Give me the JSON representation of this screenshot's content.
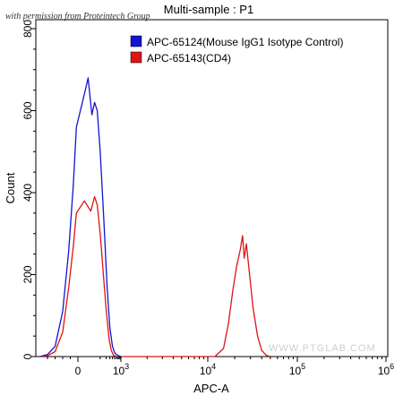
{
  "permission_note": "with permission from Proteintech Group",
  "watermark": "WWW.PTGLAB.COM",
  "chart_data": {
    "type": "line",
    "title": "Multi-sample : P1",
    "xlabel": "APC-A",
    "ylabel": "Count",
    "x_scale": "logicle",
    "ylim": [
      0,
      800
    ],
    "y_ticks": [
      0,
      200,
      400,
      600,
      800
    ],
    "y_tick_labels": [
      "0",
      "200",
      "400",
      "600",
      "800"
    ],
    "x_ticks": [
      0,
      1000,
      10000,
      100000,
      1000000
    ],
    "x_tick_labels": [
      {
        "base": "0",
        "exp": ""
      },
      {
        "base": "10",
        "exp": "3"
      },
      {
        "base": "10",
        "exp": "4"
      },
      {
        "base": "10",
        "exp": "5"
      },
      {
        "base": "10",
        "exp": "6"
      }
    ],
    "legend_position": "top-right",
    "series": [
      {
        "name": "APC-65124(Mouse IgG1 Isotype Control)",
        "color": "#1414d2",
        "points": [
          [
            -500,
            0
          ],
          [
            -400,
            5
          ],
          [
            -300,
            25
          ],
          [
            -200,
            110
          ],
          [
            -120,
            260
          ],
          [
            -60,
            420
          ],
          [
            -20,
            560
          ],
          [
            10,
            640
          ],
          [
            20,
            680
          ],
          [
            35,
            590
          ],
          [
            50,
            620
          ],
          [
            70,
            600
          ],
          [
            100,
            500
          ],
          [
            150,
            340
          ],
          [
            220,
            170
          ],
          [
            300,
            70
          ],
          [
            400,
            25
          ],
          [
            500,
            10
          ],
          [
            600,
            5
          ],
          [
            800,
            2
          ],
          [
            1000,
            0
          ]
        ]
      },
      {
        "name": "APC-65143(CD4)",
        "color": "#dc1414",
        "points": [
          [
            -500,
            0
          ],
          [
            -400,
            2
          ],
          [
            -300,
            12
          ],
          [
            -200,
            60
          ],
          [
            -120,
            170
          ],
          [
            -60,
            270
          ],
          [
            -20,
            350
          ],
          [
            10,
            380
          ],
          [
            30,
            355
          ],
          [
            50,
            390
          ],
          [
            70,
            370
          ],
          [
            100,
            300
          ],
          [
            150,
            190
          ],
          [
            200,
            110
          ],
          [
            280,
            40
          ],
          [
            350,
            15
          ],
          [
            450,
            3
          ],
          [
            600,
            0
          ],
          [
            12000,
            0
          ],
          [
            15000,
            20
          ],
          [
            17000,
            80
          ],
          [
            19000,
            160
          ],
          [
            21000,
            220
          ],
          [
            23000,
            260
          ],
          [
            24500,
            295
          ],
          [
            25500,
            240
          ],
          [
            27000,
            275
          ],
          [
            29000,
            210
          ],
          [
            32000,
            120
          ],
          [
            36000,
            50
          ],
          [
            40000,
            15
          ],
          [
            45000,
            3
          ],
          [
            50000,
            0
          ]
        ]
      }
    ]
  }
}
